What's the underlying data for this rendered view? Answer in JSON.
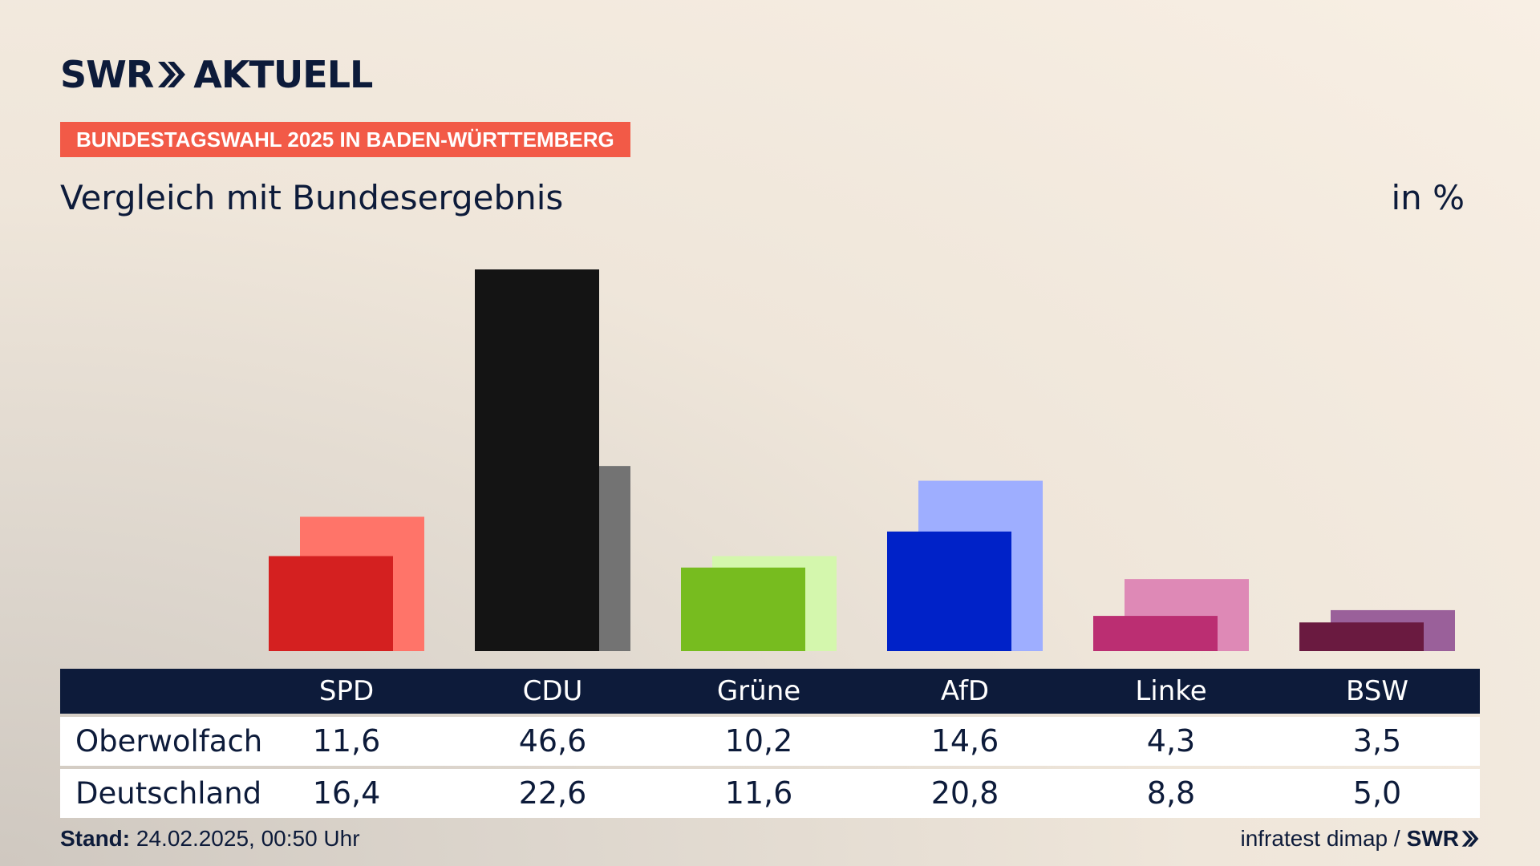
{
  "brand": {
    "name": "SWR",
    "name2": "AKTUELL",
    "chevron_icon": "double-chevron-right"
  },
  "banner": {
    "text": "BUNDESTAGSWAHL 2025 IN BADEN-WÜRTTEMBERG",
    "color": "#f25a47"
  },
  "subtitle": "Vergleich mit Bundesergebnis",
  "unit": "in %",
  "chart_data": {
    "type": "bar",
    "categories": [
      "SPD",
      "CDU",
      "Grüne",
      "AfD",
      "Linke",
      "BSW"
    ],
    "series": [
      {
        "name": "Oberwolfach",
        "values": [
          11.6,
          46.6,
          10.2,
          14.6,
          4.3,
          3.5
        ],
        "colors": [
          "#d42020",
          "#141414",
          "#77bc1f",
          "#0022c8",
          "#bb2e72",
          "#6a1a40"
        ]
      },
      {
        "name": "Deutschland",
        "values": [
          16.4,
          22.6,
          11.6,
          20.8,
          8.8,
          5.0
        ],
        "colors": [
          "#ff7469",
          "#737373",
          "#d4f7ad",
          "#9eaeff",
          "#de89b6",
          "#9a609a"
        ]
      }
    ],
    "ylim": [
      0,
      46.6
    ],
    "grid": false,
    "legend": "none"
  },
  "table": {
    "header_color": "#0d1b3a",
    "rows": [
      {
        "label": "Oberwolfach",
        "values": [
          "11,6",
          "46,6",
          "10,2",
          "14,6",
          "4,3",
          "3,5"
        ]
      },
      {
        "label": "Deutschland",
        "values": [
          "16,4",
          "22,6",
          "11,6",
          "20,8",
          "8,8",
          "5,0"
        ]
      }
    ]
  },
  "footer": {
    "stand_label": "Stand:",
    "stand_value": "24.02.2025, 00:50 Uhr",
    "source": "infratest dimap /",
    "source_brand": "SWR"
  }
}
